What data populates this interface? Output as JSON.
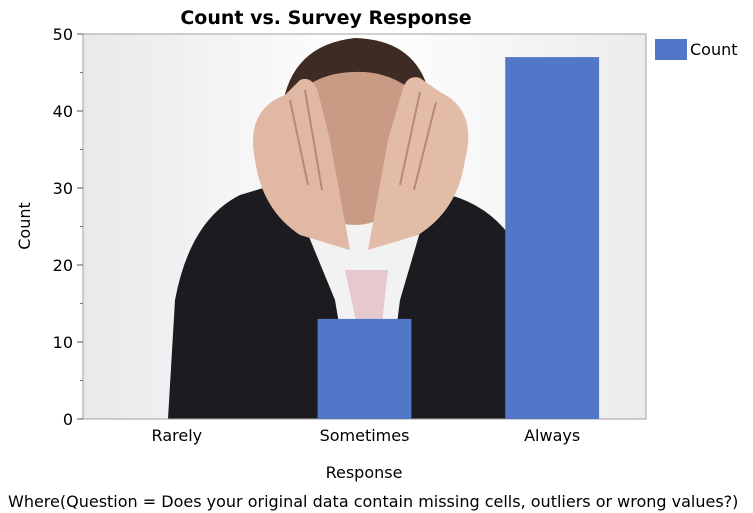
{
  "chart_data": {
    "type": "bar",
    "title": "Count vs. Survey Response",
    "xlabel": "Response",
    "ylabel": "Count",
    "categories": [
      "Rarely",
      "Sometimes",
      "Always"
    ],
    "series": [
      {
        "name": "Count",
        "values": [
          0,
          13,
          47
        ]
      }
    ],
    "ylim": [
      0,
      50
    ],
    "yticks": [
      0,
      10,
      20,
      30,
      40,
      50
    ],
    "legend_position": "top-right",
    "grid": false,
    "colors": {
      "bar": "#5277c8"
    }
  },
  "footer_text": "Where(Question = Does your original data contain missing cells, outliers or wrong values?)",
  "background_image": {
    "icon": "stressed-man-holding-head-photo"
  }
}
